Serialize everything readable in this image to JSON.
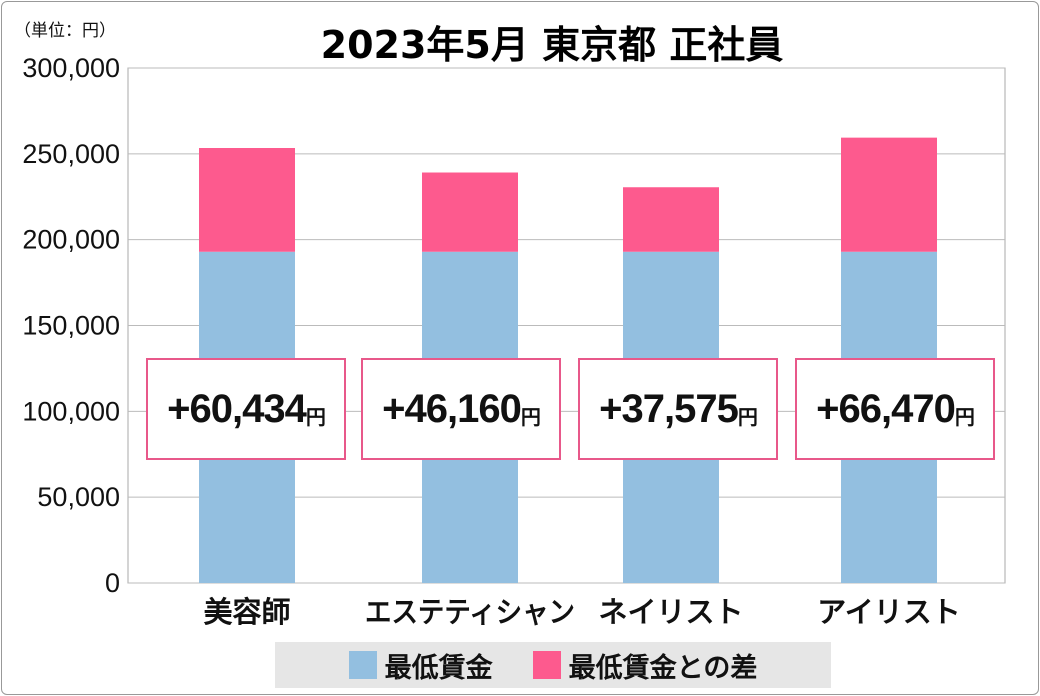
{
  "chart_data": {
    "type": "bar",
    "stacked": true,
    "title": "2023年5月 東京都 正社員",
    "unit_label": "（単位：円）",
    "categories": [
      "美容師",
      "エステティシャン",
      "ネイリスト",
      "アイリスト"
    ],
    "series": [
      {
        "name": "最低賃金",
        "values": [
          192960,
          192960,
          192960,
          192960
        ],
        "color": "#93bfe0"
      },
      {
        "name": "最低賃金との差",
        "values": [
          60434,
          46160,
          37575,
          66470
        ],
        "color": "#fd5a8e"
      }
    ],
    "data_labels": [
      "+60,434",
      "+46,160",
      "+37,575",
      "+66,470"
    ],
    "data_label_suffix": "円",
    "ylim": [
      0,
      300000
    ],
    "yticks": [
      0,
      50000,
      100000,
      150000,
      200000,
      250000,
      300000
    ],
    "ytick_labels": [
      "0",
      "50,000",
      "100,000",
      "150,000",
      "200,000",
      "250,000",
      "300,000"
    ],
    "grid": true,
    "legend_position": "bottom"
  }
}
